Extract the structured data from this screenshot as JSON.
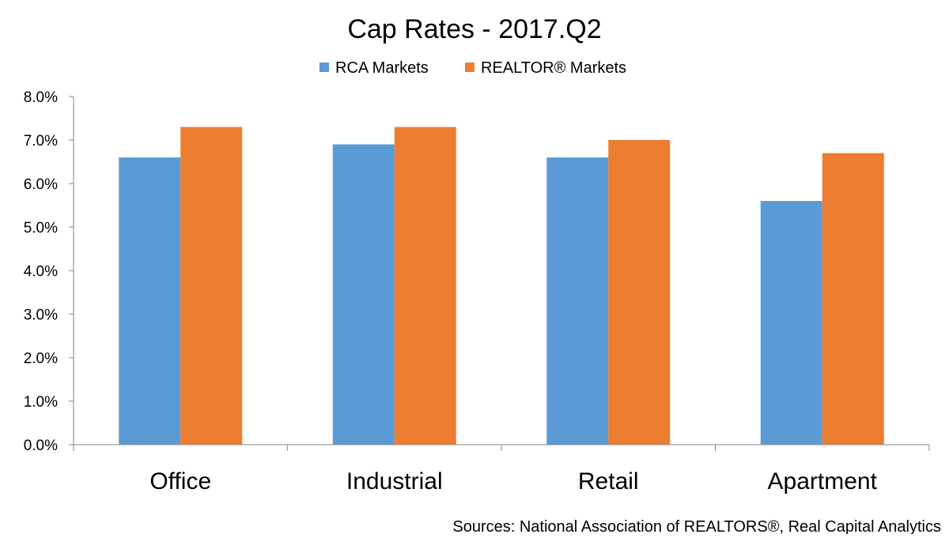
{
  "chart_data": {
    "type": "bar",
    "title": "Cap Rates - 2017.Q2",
    "categories": [
      "Office",
      "Industrial",
      "Retail",
      "Apartment"
    ],
    "series": [
      {
        "name": "RCA Markets",
        "color": "#5B9BD5",
        "values": [
          6.6,
          6.9,
          6.6,
          5.6
        ]
      },
      {
        "name": "REALTOR® Markets",
        "color": "#ED7D31",
        "values": [
          7.3,
          7.3,
          7.0,
          6.7
        ]
      }
    ],
    "y_ticks": [
      "0.0%",
      "1.0%",
      "2.0%",
      "3.0%",
      "4.0%",
      "5.0%",
      "6.0%",
      "7.0%",
      "8.0%"
    ],
    "ylim": [
      0,
      8
    ],
    "y_format": "percent",
    "grid": false,
    "legend_position": "top"
  },
  "footer": {
    "source_note": "Sources: National Association of REALTORS®, Real Capital Analytics"
  }
}
